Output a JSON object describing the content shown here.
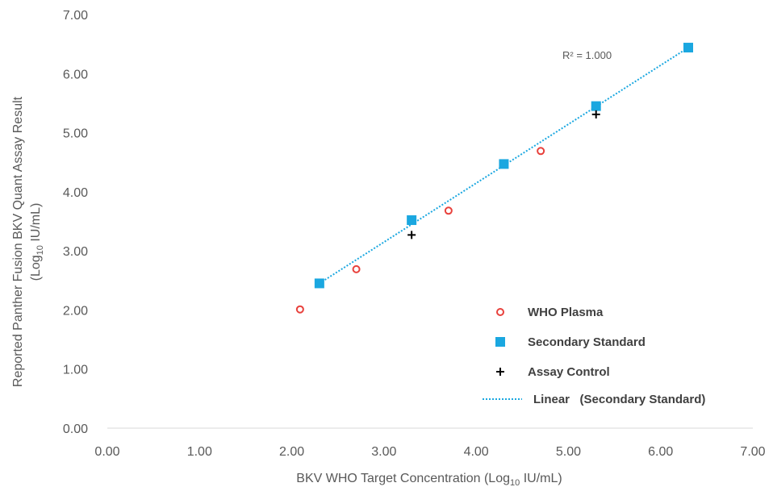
{
  "chart_data": {
    "type": "scatter",
    "xlabel": {
      "prefix": "BKV WHO Target Concentration (Log",
      "sub": "10",
      "suffix": " IU/mL)"
    },
    "ylabel": {
      "line1": "Reported Panther Fusion BKV Quant Assay Result",
      "prefix": "(Log",
      "sub": "10",
      "suffix": " IU/mL)"
    },
    "xlim": [
      0,
      7
    ],
    "ylim": [
      0,
      7
    ],
    "x_ticks": [
      "0.00",
      "1.00",
      "2.00",
      "3.00",
      "4.00",
      "5.00",
      "6.00",
      "7.00"
    ],
    "y_ticks": [
      "0.00",
      "1.00",
      "2.00",
      "3.00",
      "4.00",
      "5.00",
      "6.00",
      "7.00"
    ],
    "grid": false,
    "legend_position": "bottom-right",
    "series": [
      {
        "name": "WHO Plasma",
        "marker": "open-circle",
        "color": "#e8413c",
        "points": [
          [
            2.09,
            2.01
          ],
          [
            2.7,
            2.69
          ],
          [
            3.7,
            3.68
          ],
          [
            4.7,
            4.69
          ]
        ]
      },
      {
        "name": "Secondary Standard",
        "marker": "square",
        "color": "#1aa7e0",
        "points": [
          [
            2.3,
            2.45
          ],
          [
            3.3,
            3.52
          ],
          [
            4.3,
            4.47
          ],
          [
            5.3,
            5.45
          ],
          [
            6.3,
            6.44
          ]
        ]
      },
      {
        "name": "Assay Control",
        "marker": "plus",
        "color": "#000000",
        "points": [
          [
            3.3,
            3.27
          ],
          [
            5.3,
            5.31
          ]
        ]
      }
    ],
    "trendline": {
      "name": "Linear   (Secondary Standard)",
      "style": "dotted",
      "color": "#1aa7e0",
      "from": [
        2.3,
        2.45
      ],
      "to": [
        6.3,
        6.44
      ],
      "label": "R² = 1.000"
    }
  }
}
